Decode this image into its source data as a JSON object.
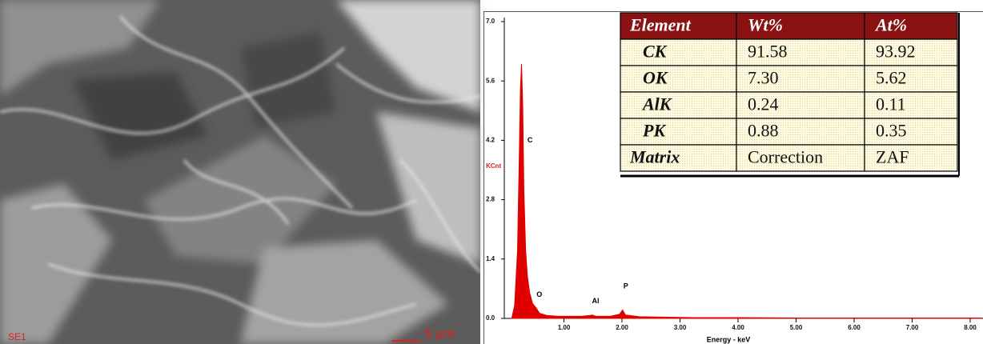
{
  "chart_data": {
    "type": "area",
    "color": "#e00000",
    "ylabel": "KCnt",
    "xlabel": "Energy - keV",
    "x": [
      0.1,
      0.15,
      0.2,
      0.23,
      0.25,
      0.27,
      0.29,
      0.31,
      0.34,
      0.37,
      0.41,
      0.46,
      0.52,
      0.58,
      0.7,
      0.9,
      1.1,
      1.3,
      1.45,
      1.49,
      1.55,
      1.8,
      1.96,
      2.01,
      2.06,
      2.3,
      2.7,
      3.2,
      4,
      5,
      6,
      7,
      8.2
    ],
    "values": [
      0,
      0.3,
      1.6,
      3.8,
      5.4,
      6.0,
      5.0,
      3.0,
      1.6,
      1.0,
      0.6,
      0.35,
      0.25,
      0.12,
      0.07,
      0.05,
      0.05,
      0.05,
      0.07,
      0.08,
      0.05,
      0.05,
      0.1,
      0.2,
      0.08,
      0.04,
      0.03,
      0.02,
      0.02,
      0.01,
      0.01,
      0.01,
      0.01
    ],
    "annotations": [
      {
        "text": "C",
        "x": 0.36,
        "y": 4.2
      },
      {
        "text": "O",
        "x": 0.52,
        "y": 0.55
      },
      {
        "text": "Al",
        "x": 1.49,
        "y": 0.4
      },
      {
        "text": "P",
        "x": 2.01,
        "y": 0.75
      }
    ],
    "xlim": [
      0,
      8.2
    ],
    "ylim": [
      0,
      7
    ],
    "xticks": [
      {
        "value": 1,
        "label": "1.00"
      },
      {
        "value": 2,
        "label": "2.00"
      },
      {
        "value": 3,
        "label": "3.00"
      },
      {
        "value": 4,
        "label": "4.00"
      },
      {
        "value": 5,
        "label": "5.00"
      },
      {
        "value": 6,
        "label": "6.00"
      },
      {
        "value": 7,
        "label": "7.00"
      },
      {
        "value": 8,
        "label": "8.00"
      }
    ],
    "yticks": [
      {
        "value": 0,
        "label": "0.0"
      },
      1.4,
      2.8,
      4.2,
      5.6,
      {
        "value": 7,
        "label": "7.0"
      }
    ]
  },
  "table": {
    "header": [
      "Element",
      "Wt%",
      "At%"
    ],
    "rows": [
      [
        "CK",
        "91.58",
        "93.92"
      ],
      [
        "OK",
        "7.30",
        "5.62"
      ],
      [
        "AlK",
        "0.24",
        "0.11"
      ],
      [
        "PK",
        "0.88",
        "0.35"
      ],
      [
        "Matrix",
        "Correction",
        "ZAF"
      ]
    ]
  },
  "image": {
    "mode": "SE1",
    "scale": "5 μm"
  }
}
